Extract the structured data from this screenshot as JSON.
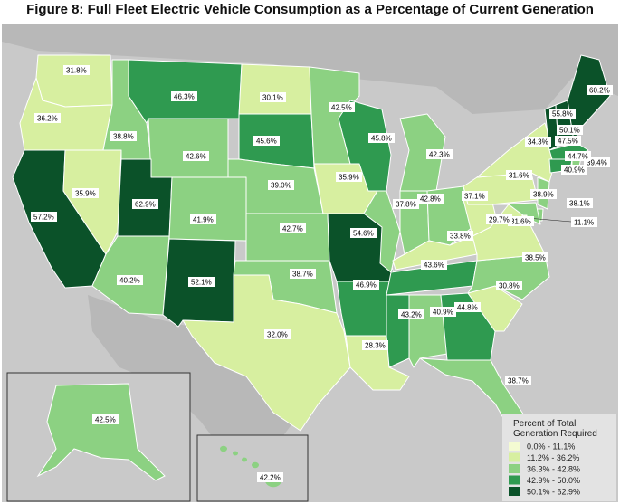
{
  "title": "Figure 8: Full Fleet Electric Vehicle Consumption as a Percentage of Current Generation",
  "colors": {
    "water": "#c9c9c9",
    "land": "#b3b3b3",
    "border": "#ffffff",
    "c0": "#f4fbd2",
    "c1": "#d7efa0",
    "c2": "#8cd182",
    "c3": "#2f9a50",
    "c4": "#0b5229"
  },
  "legend": {
    "title_line1": "Percent of Total",
    "title_line2": "Generation Required",
    "items": [
      {
        "label": "0.0% - 11.1%",
        "color": "#f4fbd2"
      },
      {
        "label": "11.2% - 36.2%",
        "color": "#d7efa0"
      },
      {
        "label": "36.3% - 42.8%",
        "color": "#8cd182"
      },
      {
        "label": "42.9% - 50.0%",
        "color": "#2f9a50"
      },
      {
        "label": "50.1% - 62.9%",
        "color": "#0b5229"
      }
    ]
  },
  "states": [
    {
      "name": "WA",
      "value": "31.8%",
      "cls": 1
    },
    {
      "name": "OR",
      "value": "36.2%",
      "cls": 1
    },
    {
      "name": "CA",
      "value": "57.2%",
      "cls": 4
    },
    {
      "name": "NV",
      "value": "35.9%",
      "cls": 1
    },
    {
      "name": "ID",
      "value": "38.8%",
      "cls": 2
    },
    {
      "name": "MT",
      "value": "46.3%",
      "cls": 3
    },
    {
      "name": "WY",
      "value": "42.6%",
      "cls": 2
    },
    {
      "name": "UT",
      "value": "62.9%",
      "cls": 4
    },
    {
      "name": "AZ",
      "value": "40.2%",
      "cls": 2
    },
    {
      "name": "CO",
      "value": "41.9%",
      "cls": 2
    },
    {
      "name": "NM",
      "value": "52.1%",
      "cls": 4
    },
    {
      "name": "ND",
      "value": "30.1%",
      "cls": 1
    },
    {
      "name": "SD",
      "value": "45.6%",
      "cls": 3
    },
    {
      "name": "NE",
      "value": "39.0%",
      "cls": 2
    },
    {
      "name": "KS",
      "value": "42.7%",
      "cls": 2
    },
    {
      "name": "OK",
      "value": "38.7%",
      "cls": 2
    },
    {
      "name": "TX",
      "value": "32.0%",
      "cls": 1
    },
    {
      "name": "MN",
      "value": "42.5%",
      "cls": 2
    },
    {
      "name": "IA",
      "value": "35.9%",
      "cls": 1
    },
    {
      "name": "MO",
      "value": "54.6%",
      "cls": 4
    },
    {
      "name": "AR",
      "value": "46.9%",
      "cls": 3
    },
    {
      "name": "LA",
      "value": "28.3%",
      "cls": 1
    },
    {
      "name": "WI",
      "value": "45.8%",
      "cls": 3
    },
    {
      "name": "IL",
      "value": "37.8%",
      "cls": 2
    },
    {
      "name": "MI",
      "value": "42.3%",
      "cls": 2
    },
    {
      "name": "IN",
      "value": "42.8%",
      "cls": 2
    },
    {
      "name": "OH",
      "value": "37.1%",
      "cls": 2
    },
    {
      "name": "KY",
      "value": "33.8%",
      "cls": 1
    },
    {
      "name": "TN",
      "value": "43.6%",
      "cls": 3
    },
    {
      "name": "MS",
      "value": "43.2%",
      "cls": 3
    },
    {
      "name": "AL",
      "value": "40.9%",
      "cls": 2
    },
    {
      "name": "GA",
      "value": "44.8%",
      "cls": 3
    },
    {
      "name": "FL",
      "value": "38.7%",
      "cls": 2
    },
    {
      "name": "SC",
      "value": "30.8%",
      "cls": 1
    },
    {
      "name": "NC",
      "value": "38.5%",
      "cls": 2
    },
    {
      "name": "VA",
      "value": "31.6%",
      "cls": 1
    },
    {
      "name": "WV",
      "value": "29.7%",
      "cls": 1
    },
    {
      "name": "PA",
      "value": "31.6%",
      "cls": 1
    },
    {
      "name": "NY",
      "value": "34.3%",
      "cls": 1
    },
    {
      "name": "VT",
      "value": "55.8%",
      "cls": 4
    },
    {
      "name": "NH",
      "value": "50.1%",
      "cls": 4
    },
    {
      "name": "ME",
      "value": "60.2%",
      "cls": 4
    },
    {
      "name": "MA",
      "value": "47.5%",
      "cls": 3
    },
    {
      "name": "RI",
      "value": "39.4%",
      "cls": 2
    },
    {
      "name": "CT",
      "value": "44.7%",
      "cls": 3
    },
    {
      "name": "NJ",
      "value": "40.9%",
      "cls": 2
    },
    {
      "name": "DE",
      "value": "38.1%",
      "cls": 2
    },
    {
      "name": "MD",
      "value": "38.9%",
      "cls": 2
    },
    {
      "name": "DC",
      "value": "11.1%",
      "cls": 0
    },
    {
      "name": "AK",
      "value": "42.5%",
      "cls": 2
    },
    {
      "name": "HI",
      "value": "42.2%",
      "cls": 2
    }
  ]
}
